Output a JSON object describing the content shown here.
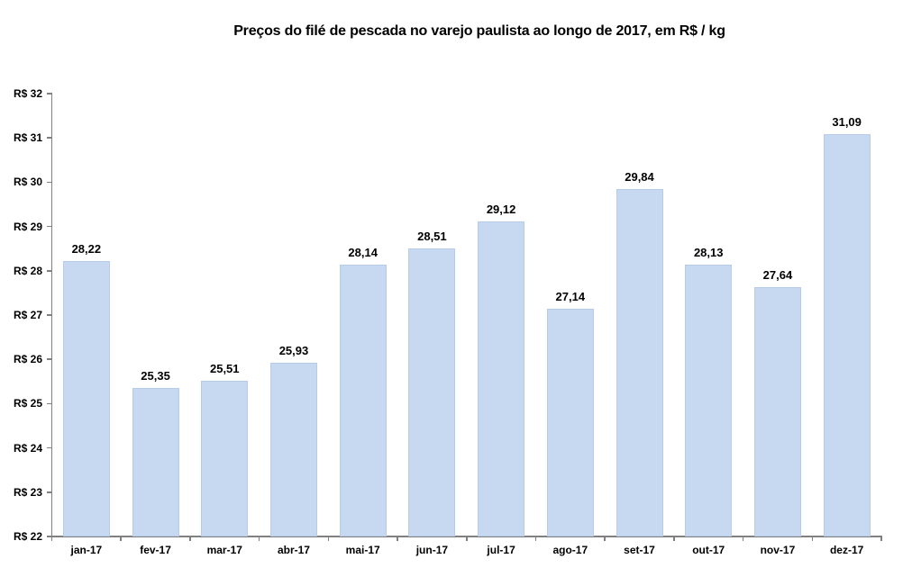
{
  "chart_data": {
    "type": "bar",
    "title": "Preços do filé de pescada no varejo paulista ao longo de 2017, em R$ / kg",
    "categories": [
      "jan-17",
      "fev-17",
      "mar-17",
      "abr-17",
      "mai-17",
      "jun-17",
      "jul-17",
      "ago-17",
      "set-17",
      "out-17",
      "nov-17",
      "dez-17"
    ],
    "values": [
      28.22,
      25.35,
      25.51,
      25.93,
      28.14,
      28.51,
      29.12,
      27.14,
      29.84,
      28.13,
      27.64,
      31.09
    ],
    "value_labels": [
      "28,22",
      "25,35",
      "25,51",
      "25,93",
      "28,14",
      "28,51",
      "29,12",
      "27,14",
      "29,84",
      "28,13",
      "27,64",
      "31,09"
    ],
    "xlabel": "",
    "ylabel": "",
    "ylim": [
      22,
      32
    ],
    "y_tick_step": 1,
    "y_tick_labels": [
      "R$ 22",
      "R$ 23",
      "R$ 24",
      "R$ 25",
      "R$ 26",
      "R$ 27",
      "R$ 28",
      "R$ 29",
      "R$ 30",
      "R$ 31",
      "R$ 32"
    ],
    "grid": false,
    "legend": "none",
    "colors": {
      "bar_fill": "#C6D9F1",
      "bar_border": "#B7CCE8",
      "axis": "#808080",
      "text": "#000000",
      "background": "#FFFFFF"
    }
  }
}
